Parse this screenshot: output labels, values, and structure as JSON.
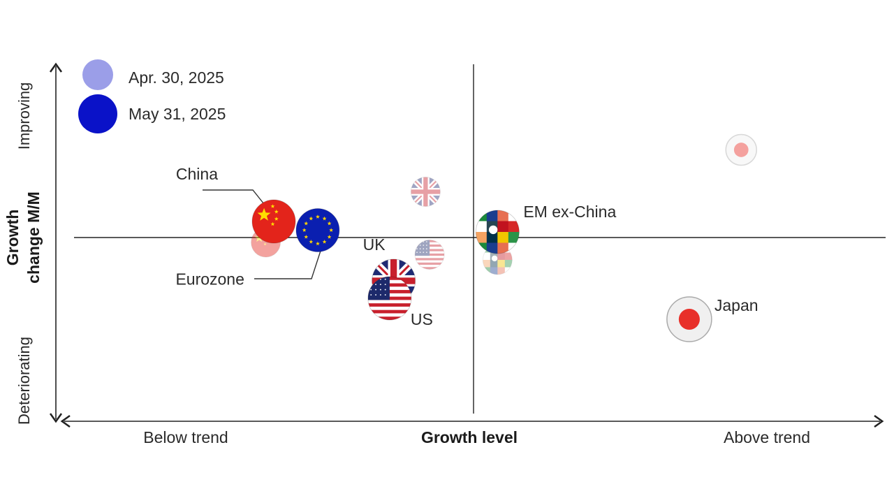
{
  "chart_data": {
    "type": "scatter",
    "xlabel": "Growth level",
    "ylabel_line1": "Growth",
    "ylabel_line2": "change M/M",
    "x_low_label": "Below trend",
    "x_high_label": "Above trend",
    "y_high_label": "Improving",
    "y_low_label": "Deteriorating",
    "xlim": [
      -1,
      1
    ],
    "ylim": [
      -1,
      1
    ],
    "legend": {
      "placement": "top-left",
      "entries": [
        {
          "name": "Apr. 30, 2025",
          "color": "#9b9ee8"
        },
        {
          "name": "May 31, 2025",
          "color": "#0a12c8"
        }
      ]
    },
    "points": [
      {
        "name": "China",
        "flag": "china",
        "date": "Apr. 30, 2025",
        "x": -0.52,
        "y": -0.02
      },
      {
        "name": "China",
        "flag": "china",
        "date": "May 31, 2025",
        "x": -0.5,
        "y": 0.1,
        "label": "China"
      },
      {
        "name": "Eurozone",
        "flag": "eu",
        "date": "Apr. 30, 2025",
        "x": -0.39,
        "y": 0.05
      },
      {
        "name": "Eurozone",
        "flag": "eu",
        "date": "May 31, 2025",
        "x": -0.39,
        "y": 0.05,
        "label": "Eurozone"
      },
      {
        "name": "UK",
        "flag": "uk",
        "date": "Apr. 30, 2025",
        "x": -0.12,
        "y": 0.27
      },
      {
        "name": "UK",
        "flag": "uk",
        "date": "May 31, 2025",
        "x": -0.2,
        "y": -0.24,
        "label": "UK"
      },
      {
        "name": "US",
        "flag": "us",
        "date": "Apr. 30, 2025",
        "x": -0.11,
        "y": -0.09
      },
      {
        "name": "US",
        "flag": "us",
        "date": "May 31, 2025",
        "x": -0.21,
        "y": -0.34,
        "label": "US"
      },
      {
        "name": "EM ex-China",
        "flag": "em",
        "date": "Apr. 30, 2025",
        "x": 0.06,
        "y": -0.12
      },
      {
        "name": "EM ex-China",
        "flag": "em",
        "date": "May 31, 2025",
        "x": 0.06,
        "y": 0.04,
        "label": "EM ex-China"
      },
      {
        "name": "Japan",
        "flag": "japan",
        "date": "Apr. 30, 2025",
        "x": 0.67,
        "y": 0.51
      },
      {
        "name": "Japan",
        "flag": "japan",
        "date": "May 31, 2025",
        "x": 0.54,
        "y": -0.46,
        "label": "Japan"
      }
    ]
  }
}
